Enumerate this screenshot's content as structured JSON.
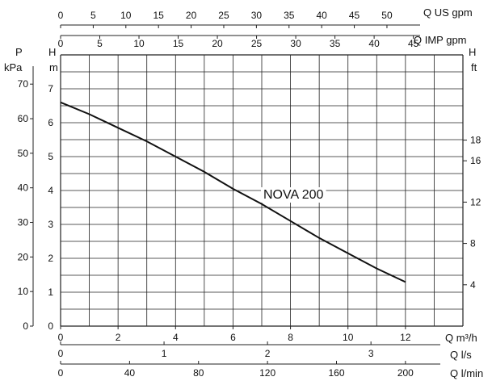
{
  "chart_data": {
    "type": "line",
    "curve_name": "NOVA 200",
    "series": [
      {
        "name": "NOVA 200",
        "x": [
          0,
          1,
          2,
          3,
          4,
          5,
          6,
          7,
          8,
          9,
          10,
          11,
          12
        ],
        "y": [
          6.6,
          6.25,
          5.85,
          5.45,
          5.0,
          4.55,
          4.05,
          3.6,
          3.1,
          2.6,
          2.15,
          1.7,
          1.3
        ]
      }
    ],
    "axes": {
      "x_primary": {
        "label": "Q m³/h",
        "range": [
          0,
          14
        ],
        "ticks": [
          "0",
          "2",
          "4",
          "6",
          "8",
          "10",
          "12"
        ]
      },
      "x_ls": {
        "label": "Q l/s",
        "ticks": [
          "0",
          "1",
          "2",
          "3"
        ]
      },
      "x_lmin": {
        "label": "Q l/min",
        "ticks": [
          "0",
          "40",
          "80",
          "120",
          "160",
          "200"
        ]
      },
      "x_usgpm": {
        "label": "Q US gpm",
        "ticks": [
          "0",
          "5",
          "10",
          "15",
          "20",
          "25",
          "30",
          "35",
          "40",
          "45",
          "50"
        ]
      },
      "x_impgpm": {
        "label": "Q IMP gpm",
        "ticks": [
          "0",
          "5",
          "10",
          "15",
          "20",
          "25",
          "30",
          "35",
          "40",
          "45"
        ]
      },
      "y_m": {
        "label_top": "H",
        "label_bottom": "m",
        "range": [
          0,
          8
        ],
        "ticks": [
          "0",
          "1",
          "2",
          "3",
          "4",
          "5",
          "6",
          "7"
        ]
      },
      "y_kpa": {
        "label_top": "P",
        "label_bottom": "kPa",
        "ticks": [
          "0",
          "10",
          "20",
          "30",
          "40",
          "50",
          "60",
          "70"
        ]
      },
      "y_ft": {
        "label_top": "H",
        "label_bottom": "ft",
        "ticks": [
          "4",
          "8",
          "12",
          "16",
          "18"
        ]
      }
    },
    "grid": true,
    "colors": {
      "line": "#111111",
      "grid": "#222222",
      "background": "#ffffff"
    }
  }
}
